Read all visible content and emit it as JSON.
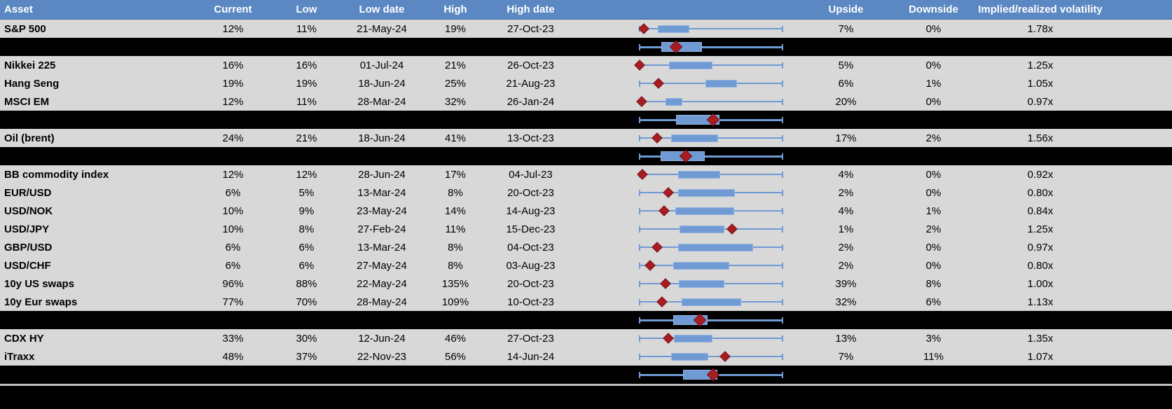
{
  "colors": {
    "header_bg": "#5b87c3",
    "row_bg": "#d8d8d8",
    "summary_row_bg": "#000000",
    "box_fill": "#6f9ad3",
    "box_border": "#93b3e0",
    "whisker": "#6f9ad3",
    "diamond_fill": "#a81c22",
    "diamond_border": "#7a1217"
  },
  "chart_data": {
    "type": "table",
    "title": "",
    "notes": "Each row contains an embedded horizontal box-plot: blue whisker spans the low-high range (ticks at both ends), blue box marks a middle band, dark-red diamond marks the current level. Black separator rows show aggregate box-plots. Positions are fractions 0-1 of the whisker span.",
    "columns": [
      "Asset",
      "Current",
      "Low",
      "Low date",
      "High",
      "High date",
      "",
      "Upside",
      "Downside",
      "Implied/realized volatility"
    ],
    "rows": [
      {
        "kind": "data",
        "asset": "S&P 500",
        "current": "12%",
        "low": "11%",
        "low_date": "21-May-24",
        "high": "19%",
        "high_date": "27-Oct-23",
        "upside": "7%",
        "downside": "0%",
        "implied_realized": "1.78x",
        "boxplot": {
          "whisker": [
            0,
            1
          ],
          "box": [
            0.126,
            0.345
          ],
          "diamond": 0.029
        }
      },
      {
        "kind": "summary",
        "asset": "",
        "current": "",
        "low": "",
        "low_date": "",
        "high": "",
        "high_date": "",
        "upside": "",
        "downside": "",
        "implied_realized": "",
        "boxplot": {
          "whisker": [
            0,
            1
          ],
          "box": [
            0.149,
            0.435
          ],
          "diamond": 0.255
        }
      },
      {
        "kind": "data",
        "asset": "Nikkei 225",
        "current": "16%",
        "low": "16%",
        "low_date": "01-Jul-24",
        "high": "21%",
        "high_date": "26-Oct-23",
        "upside": "5%",
        "downside": "0%",
        "implied_realized": "1.25x",
        "boxplot": {
          "whisker": [
            0,
            1
          ],
          "box": [
            0.206,
            0.508
          ],
          "diamond": 0.0
        }
      },
      {
        "kind": "data",
        "asset": "Hang Seng",
        "current": "19%",
        "low": "19%",
        "low_date": "18-Jun-24",
        "high": "25%",
        "high_date": "21-Aug-23",
        "upside": "6%",
        "downside": "1%",
        "implied_realized": "1.05x",
        "boxplot": {
          "whisker": [
            0,
            1
          ],
          "box": [
            0.459,
            0.68
          ],
          "diamond": 0.132
        }
      },
      {
        "kind": "data",
        "asset": "MSCI EM",
        "current": "12%",
        "low": "11%",
        "low_date": "28-Mar-24",
        "high": "32%",
        "high_date": "26-Jan-24",
        "upside": "20%",
        "downside": "0%",
        "implied_realized": "0.97x",
        "boxplot": {
          "whisker": [
            0,
            1
          ],
          "box": [
            0.181,
            0.296
          ],
          "diamond": 0.015
        }
      },
      {
        "kind": "summary",
        "asset": "",
        "current": "",
        "low": "",
        "low_date": "",
        "high": "",
        "high_date": "",
        "upside": "",
        "downside": "",
        "implied_realized": "",
        "boxplot": {
          "whisker": [
            0,
            1
          ],
          "box": [
            0.255,
            0.557
          ],
          "diamond": 0.516
        }
      },
      {
        "kind": "data",
        "asset": "Oil (brent)",
        "current": "24%",
        "low": "21%",
        "low_date": "18-Jun-24",
        "high": "41%",
        "high_date": "13-Oct-23",
        "upside": "17%",
        "downside": "2%",
        "implied_realized": "1.56x",
        "boxplot": {
          "whisker": [
            0,
            1
          ],
          "box": [
            0.222,
            0.549
          ],
          "diamond": 0.121
        }
      },
      {
        "kind": "summary",
        "asset": "",
        "current": "",
        "low": "",
        "low_date": "",
        "high": "",
        "high_date": "",
        "upside": "",
        "downside": "",
        "implied_realized": "",
        "boxplot": {
          "whisker": [
            0,
            1
          ],
          "box": [
            0.146,
            0.455
          ],
          "diamond": 0.324
        }
      },
      {
        "kind": "data",
        "asset": "BB commodity index",
        "current": "12%",
        "low": "12%",
        "low_date": "28-Jun-24",
        "high": "17%",
        "high_date": "04-Jul-23",
        "upside": "4%",
        "downside": "0%",
        "implied_realized": "0.92x",
        "boxplot": {
          "whisker": [
            0,
            1
          ],
          "box": [
            0.271,
            0.562
          ],
          "diamond": 0.02
        }
      },
      {
        "kind": "data",
        "asset": "EUR/USD",
        "current": "6%",
        "low": "5%",
        "low_date": "13-Mar-24",
        "high": "8%",
        "high_date": "20-Oct-23",
        "upside": "2%",
        "downside": "0%",
        "implied_realized": "0.80x",
        "boxplot": {
          "whisker": [
            0,
            1
          ],
          "box": [
            0.268,
            0.667
          ],
          "diamond": 0.202
        }
      },
      {
        "kind": "data",
        "asset": "USD/NOK",
        "current": "10%",
        "low": "9%",
        "low_date": "23-May-24",
        "high": "14%",
        "high_date": "14-Aug-23",
        "upside": "4%",
        "downside": "1%",
        "implied_realized": "0.84x",
        "boxplot": {
          "whisker": [
            0,
            1
          ],
          "box": [
            0.25,
            0.662
          ],
          "diamond": 0.173
        }
      },
      {
        "kind": "data",
        "asset": "USD/JPY",
        "current": "10%",
        "low": "8%",
        "low_date": "27-Feb-24",
        "high": "11%",
        "high_date": "15-Dec-23",
        "upside": "1%",
        "downside": "2%",
        "implied_realized": "1.25x",
        "boxplot": {
          "whisker": [
            0,
            1
          ],
          "box": [
            0.279,
            0.593
          ],
          "diamond": 0.645
        }
      },
      {
        "kind": "data",
        "asset": "GBP/USD",
        "current": "6%",
        "low": "6%",
        "low_date": "13-Mar-24",
        "high": "8%",
        "high_date": "04-Oct-23",
        "upside": "2%",
        "downside": "0%",
        "implied_realized": "0.97x",
        "boxplot": {
          "whisker": [
            0,
            1
          ],
          "box": [
            0.268,
            0.794
          ],
          "diamond": 0.124
        }
      },
      {
        "kind": "data",
        "asset": "USD/CHF",
        "current": "6%",
        "low": "6%",
        "low_date": "27-May-24",
        "high": "8%",
        "high_date": "03-Aug-23",
        "upside": "2%",
        "downside": "0%",
        "implied_realized": "0.80x",
        "boxplot": {
          "whisker": [
            0,
            1
          ],
          "box": [
            0.235,
            0.626
          ],
          "diamond": 0.072
        }
      },
      {
        "kind": "data",
        "asset": "10y US swaps",
        "current": "96%",
        "low": "88%",
        "low_date": "22-May-24",
        "high": "135%",
        "high_date": "20-Oct-23",
        "upside": "39%",
        "downside": "8%",
        "implied_realized": "1.00x",
        "boxplot": {
          "whisker": [
            0,
            1
          ],
          "box": [
            0.275,
            0.59
          ],
          "diamond": 0.181
        }
      },
      {
        "kind": "data",
        "asset": "10y Eur swaps",
        "current": "77%",
        "low": "70%",
        "low_date": "28-May-24",
        "high": "109%",
        "high_date": "10-Oct-23",
        "upside": "32%",
        "downside": "6%",
        "implied_realized": "1.13x",
        "boxplot": {
          "whisker": [
            0,
            1
          ],
          "box": [
            0.293,
            0.712
          ],
          "diamond": 0.157
        }
      },
      {
        "kind": "summary",
        "asset": "",
        "current": "",
        "low": "",
        "low_date": "",
        "high": "",
        "high_date": "",
        "upside": "",
        "downside": "",
        "implied_realized": "",
        "boxplot": {
          "whisker": [
            0,
            1
          ],
          "box": [
            0.235,
            0.476
          ],
          "diamond": 0.422
        }
      },
      {
        "kind": "data",
        "asset": "CDX HY",
        "current": "33%",
        "low": "30%",
        "low_date": "12-Jun-24",
        "high": "46%",
        "high_date": "27-Oct-23",
        "upside": "13%",
        "downside": "3%",
        "implied_realized": "1.35x",
        "boxplot": {
          "whisker": [
            0,
            1
          ],
          "box": [
            0.239,
            0.508
          ],
          "diamond": 0.198
        }
      },
      {
        "kind": "data",
        "asset": "iTraxx",
        "current": "48%",
        "low": "37%",
        "low_date": "22-Nov-23",
        "high": "56%",
        "high_date": "14-Jun-24",
        "upside": "7%",
        "downside": "11%",
        "implied_realized": "1.07x",
        "boxplot": {
          "whisker": [
            0,
            1
          ],
          "box": [
            0.222,
            0.479
          ],
          "diamond": 0.598
        }
      },
      {
        "kind": "summary",
        "asset": "",
        "current": "",
        "low": "",
        "low_date": "",
        "high": "",
        "high_date": "",
        "upside": "",
        "downside": "",
        "implied_realized": "",
        "boxplot": {
          "whisker": [
            0,
            1
          ],
          "box": [
            0.304,
            0.541
          ],
          "diamond": 0.516
        }
      }
    ]
  }
}
